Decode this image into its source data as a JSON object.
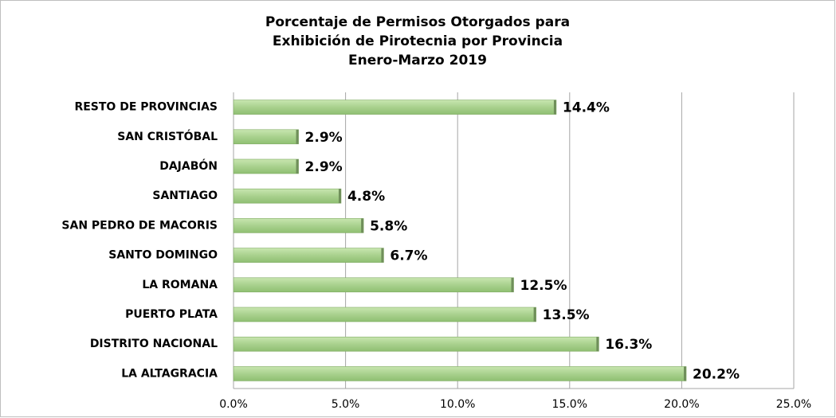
{
  "chart_data": {
    "type": "bar",
    "orientation": "horizontal",
    "title": [
      "Porcentaje de Permisos Otorgados para",
      "Exhibición de Pirotecnia por Provincia",
      "Enero-Marzo 2019"
    ],
    "categories": [
      "RESTO DE PROVINCIAS",
      "SAN CRISTÓBAL",
      "DAJABÓN",
      "SANTIAGO",
      "SAN PEDRO DE MACORIS",
      "SANTO DOMINGO",
      "LA ROMANA",
      "PUERTO PLATA",
      "DISTRITO NACIONAL",
      "LA ALTAGRACIA"
    ],
    "values": [
      14.4,
      2.9,
      2.9,
      4.8,
      5.8,
      6.7,
      12.5,
      13.5,
      16.3,
      20.2
    ],
    "value_labels": [
      "14.4%",
      "2.9%",
      "2.9%",
      "4.8%",
      "5.8%",
      "6.7%",
      "12.5%",
      "13.5%",
      "16.3%",
      "20.2%"
    ],
    "color": "#a9d18e",
    "xlim": [
      0,
      25
    ],
    "xticks": [
      {
        "value": 0,
        "label": "0.0%"
      },
      {
        "value": 5,
        "label": "5.0%"
      },
      {
        "value": 10,
        "label": "10.0%"
      },
      {
        "value": 15,
        "label": "15.0%"
      },
      {
        "value": 20,
        "label": "20.0%"
      },
      {
        "value": 25,
        "label": "25.0%"
      }
    ],
    "grid": true
  }
}
